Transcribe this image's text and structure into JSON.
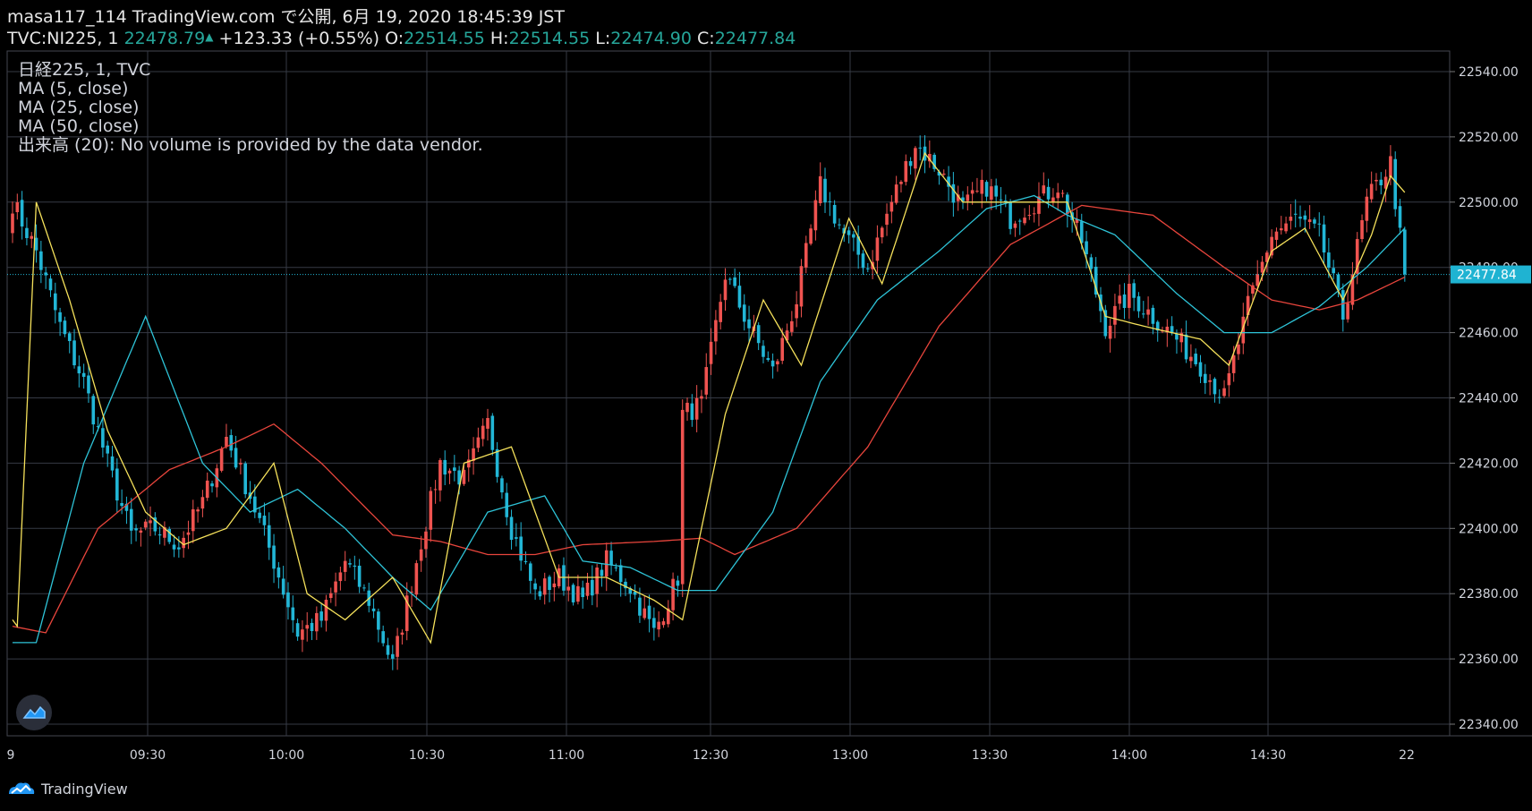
{
  "header": {
    "line1": "masa117_114 TradingView.com で公開, 6月 19, 2020 18:45:39 JST",
    "symbol": "TVC:NI225, 1",
    "last": "22478.79",
    "change": "+123.33 (+0.55%)",
    "o_label": "O:",
    "o": "22514.55",
    "h_label": "H:",
    "h": "22514.55",
    "l_label": "L:",
    "l": "22474.90",
    "c_label": "C:",
    "c": "22477.84"
  },
  "legend": {
    "title": "日経225, 1, TVC",
    "ma5": "MA (5, close)",
    "ma25": "MA (25, close)",
    "ma50": "MA (50, close)",
    "volume": "出来高 (20): No volume is provided by the data vendor."
  },
  "footer": {
    "brand": "TradingView"
  },
  "colors": {
    "up": "#ef5350",
    "down": "#22b6d6",
    "ma5": "#f5e15b",
    "ma25": "#2ec4d8",
    "ma50": "#e8453c",
    "grid": "#363a45"
  },
  "chart_data": {
    "type": "candlestick",
    "title": "",
    "y_ticks": [
      "22540.00",
      "22520.00",
      "22500.00",
      "22480.00",
      "22460.00",
      "22440.00",
      "22420.00",
      "22400.00",
      "22380.00",
      "22360.00",
      "22340.00"
    ],
    "ylim": [
      22334,
      22544
    ],
    "x_ticks": [
      "9",
      "09:30",
      "10:00",
      "10:30",
      "11:00",
      "12:30",
      "13:00",
      "13:30",
      "14:00",
      "14:30",
      "22"
    ],
    "last_price_label": "22477.84",
    "last_price": 22477.84,
    "close_anchors": [
      [
        0,
        22500
      ],
      [
        5,
        22485
      ],
      [
        10,
        22462
      ],
      [
        15,
        22445
      ],
      [
        20,
        22420
      ],
      [
        25,
        22398
      ],
      [
        30,
        22400
      ],
      [
        35,
        22395
      ],
      [
        40,
        22408
      ],
      [
        45,
        22428
      ],
      [
        50,
        22410
      ],
      [
        55,
        22390
      ],
      [
        60,
        22368
      ],
      [
        65,
        22372
      ],
      [
        70,
        22390
      ],
      [
        75,
        22378
      ],
      [
        80,
        22358
      ],
      [
        85,
        22390
      ],
      [
        90,
        22420
      ],
      [
        95,
        22415
      ],
      [
        100,
        22432
      ],
      [
        105,
        22400
      ],
      [
        110,
        22380
      ],
      [
        115,
        22385
      ],
      [
        120,
        22378
      ],
      [
        125,
        22390
      ],
      [
        130,
        22382
      ],
      [
        135,
        22368
      ],
      [
        140,
        22385
      ],
      [
        141,
        22435
      ],
      [
        145,
        22438
      ],
      [
        150,
        22478
      ],
      [
        155,
        22462
      ],
      [
        160,
        22448
      ],
      [
        165,
        22470
      ],
      [
        170,
        22505
      ],
      [
        175,
        22490
      ],
      [
        180,
        22480
      ],
      [
        185,
        22500
      ],
      [
        190,
        22518
      ],
      [
        195,
        22510
      ],
      [
        200,
        22498
      ],
      [
        205,
        22505
      ],
      [
        210,
        22495
      ],
      [
        215,
        22500
      ],
      [
        220,
        22505
      ],
      [
        225,
        22488
      ],
      [
        230,
        22462
      ],
      [
        235,
        22472
      ],
      [
        240,
        22465
      ],
      [
        245,
        22458
      ],
      [
        250,
        22450
      ],
      [
        255,
        22440
      ],
      [
        260,
        22468
      ],
      [
        265,
        22490
      ],
      [
        270,
        22495
      ],
      [
        275,
        22490
      ],
      [
        280,
        22465
      ],
      [
        285,
        22500
      ],
      [
        290,
        22512
      ],
      [
        293,
        22477.84
      ]
    ],
    "ma5_anchors": [
      [
        0,
        22372
      ],
      [
        1,
        22370
      ],
      [
        5,
        22500
      ],
      [
        12,
        22470
      ],
      [
        20,
        22430
      ],
      [
        28,
        22405
      ],
      [
        36,
        22395
      ],
      [
        45,
        22400
      ],
      [
        55,
        22420
      ],
      [
        62,
        22380
      ],
      [
        70,
        22372
      ],
      [
        80,
        22385
      ],
      [
        88,
        22365
      ],
      [
        95,
        22420
      ],
      [
        105,
        22425
      ],
      [
        115,
        22385
      ],
      [
        125,
        22385
      ],
      [
        135,
        22378
      ],
      [
        141,
        22372
      ],
      [
        150,
        22435
      ],
      [
        158,
        22470
      ],
      [
        166,
        22450
      ],
      [
        176,
        22495
      ],
      [
        183,
        22475
      ],
      [
        192,
        22515
      ],
      [
        200,
        22500
      ],
      [
        212,
        22500
      ],
      [
        222,
        22500
      ],
      [
        230,
        22465
      ],
      [
        238,
        22462
      ],
      [
        250,
        22458
      ],
      [
        256,
        22450
      ],
      [
        265,
        22485
      ],
      [
        272,
        22492
      ],
      [
        280,
        22470
      ],
      [
        286,
        22490
      ],
      [
        290,
        22508
      ],
      [
        293,
        22503
      ]
    ],
    "ma25_anchors": [
      [
        0,
        22365
      ],
      [
        5,
        22365
      ],
      [
        15,
        22420
      ],
      [
        28,
        22465
      ],
      [
        40,
        22420
      ],
      [
        50,
        22405
      ],
      [
        60,
        22412
      ],
      [
        70,
        22400
      ],
      [
        80,
        22385
      ],
      [
        88,
        22375
      ],
      [
        100,
        22405
      ],
      [
        112,
        22410
      ],
      [
        120,
        22390
      ],
      [
        130,
        22388
      ],
      [
        140,
        22381
      ],
      [
        148,
        22381
      ],
      [
        160,
        22405
      ],
      [
        170,
        22445
      ],
      [
        182,
        22470
      ],
      [
        195,
        22485
      ],
      [
        205,
        22498
      ],
      [
        215,
        22502
      ],
      [
        222,
        22496
      ],
      [
        232,
        22490
      ],
      [
        245,
        22472
      ],
      [
        255,
        22460
      ],
      [
        265,
        22460
      ],
      [
        275,
        22468
      ],
      [
        285,
        22480
      ],
      [
        293,
        22492
      ]
    ],
    "ma50_anchors": [
      [
        0,
        22370
      ],
      [
        7,
        22368
      ],
      [
        18,
        22400
      ],
      [
        33,
        22418
      ],
      [
        45,
        22425
      ],
      [
        55,
        22432
      ],
      [
        65,
        22420
      ],
      [
        80,
        22398
      ],
      [
        90,
        22396
      ],
      [
        100,
        22392
      ],
      [
        110,
        22392
      ],
      [
        120,
        22395
      ],
      [
        135,
        22396
      ],
      [
        145,
        22397
      ],
      [
        152,
        22392
      ],
      [
        165,
        22400
      ],
      [
        180,
        22425
      ],
      [
        195,
        22462
      ],
      [
        210,
        22487
      ],
      [
        225,
        22499
      ],
      [
        240,
        22496
      ],
      [
        255,
        22480
      ],
      [
        265,
        22470
      ],
      [
        275,
        22467
      ],
      [
        283,
        22470
      ],
      [
        293,
        22477
      ]
    ]
  }
}
